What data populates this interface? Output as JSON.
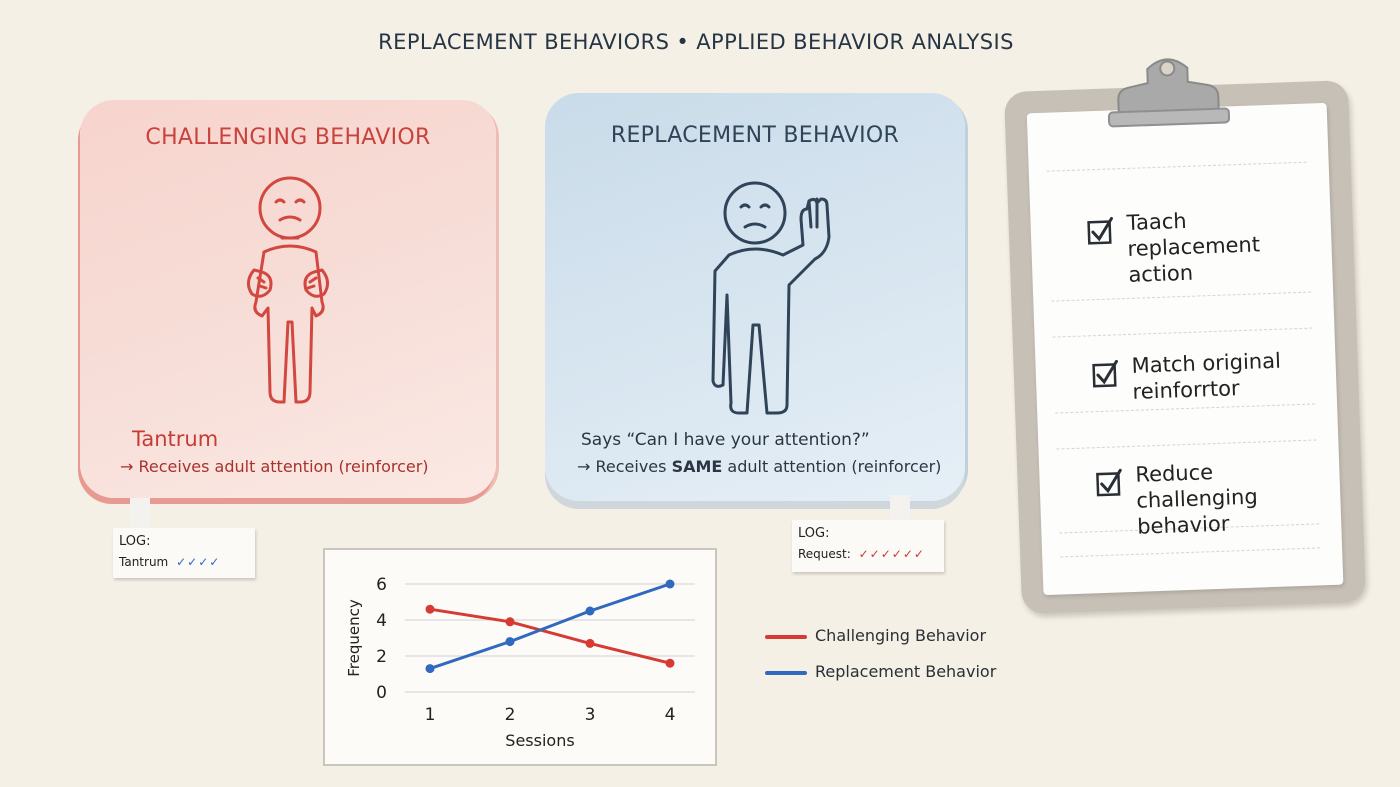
{
  "title": "REPLACEMENT BEHAVIORS • APPLIED BEHAVIOR ANALYSIS",
  "challenging": {
    "heading": "CHALLENGING BEHAVIOR",
    "behavior": "Tantrum",
    "result": "→ Receives adult attention (reinforcer)",
    "log_label": "LOG:",
    "log_entry": "Tantrum",
    "log_marks": "✓✓✓✓"
  },
  "replacement": {
    "heading": "REPLACEMENT BEHAVIOR",
    "behavior": "Says “Can I have your attention?”",
    "result_pre": "→ Receives",
    "result_bold": "SAME",
    "result_post": "adult attention (reinforcer)",
    "log_label": "LOG:",
    "log_entry": "Request:",
    "log_marks": "✓✓✓✓✓✓"
  },
  "checklist": [
    "Taach replacement action",
    "Match original reinforrtor",
    "Reduce challenging behavior"
  ],
  "colors": {
    "red": "#d63b33",
    "blue": "#2f69c0",
    "card_red": "#f7d4cd",
    "card_blue": "#c9dbe9"
  },
  "chart_data": {
    "type": "line",
    "x": [
      1,
      2,
      3,
      4
    ],
    "xlabel": "Sessions",
    "ylabel": "Frequency",
    "ylim": [
      0,
      6
    ],
    "yticks": [
      0,
      2,
      4,
      6
    ],
    "grid": true,
    "legend": "right",
    "series": [
      {
        "name": "Challenging Behavior",
        "values": [
          4.6,
          3.9,
          2.7,
          1.6
        ],
        "color": "#d63b33"
      },
      {
        "name": "Replacement Behavior",
        "values": [
          1.3,
          2.8,
          4.5,
          6.0
        ],
        "color": "#2f69c0"
      }
    ]
  }
}
